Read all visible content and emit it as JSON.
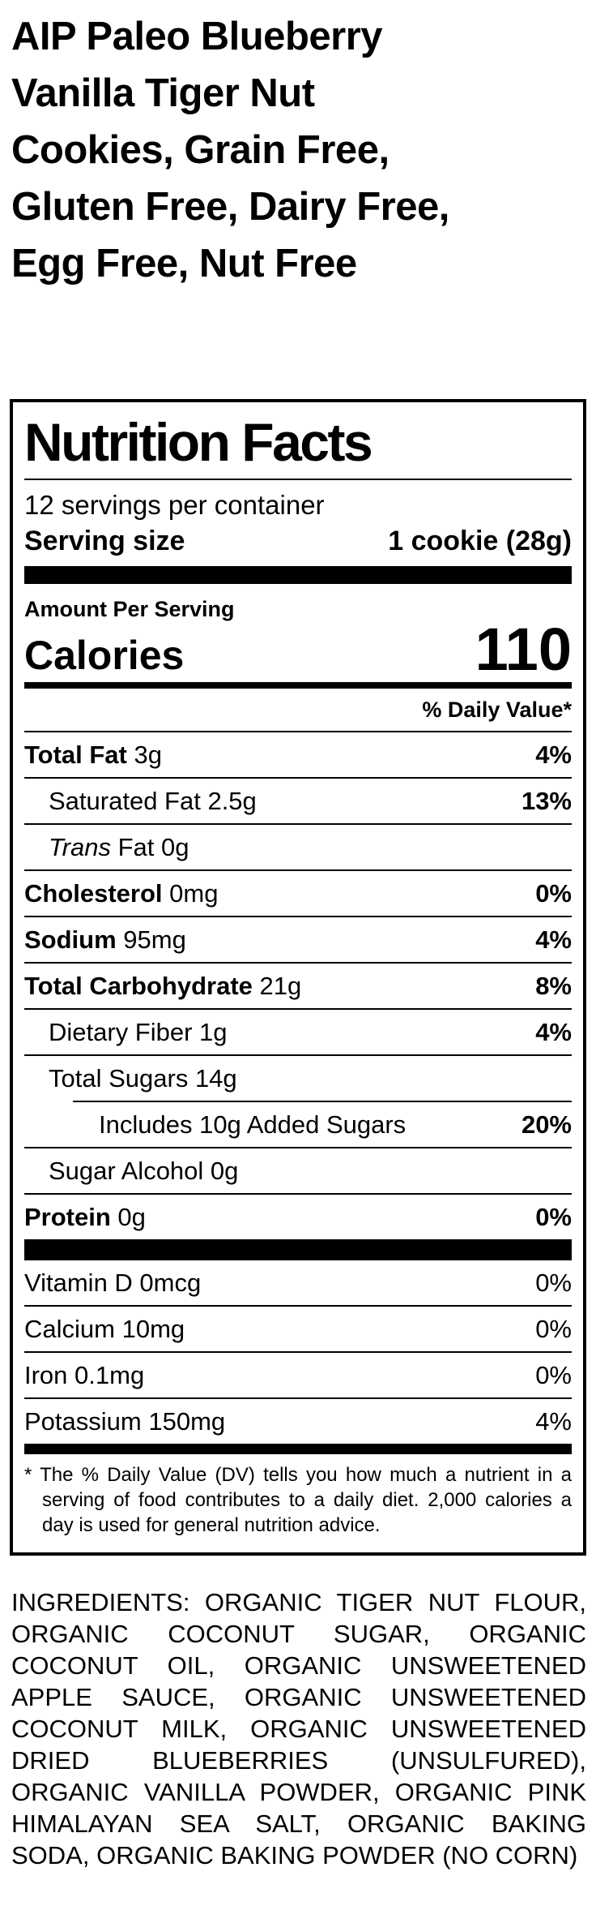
{
  "product": {
    "title_lines": [
      "AIP Paleo Blueberry",
      "Vanilla Tiger Nut",
      "Cookies, Grain Free,",
      "Gluten Free, Dairy Free,",
      "Egg Free, Nut Free"
    ]
  },
  "label": {
    "title": "Nutrition Facts",
    "servings_per_container": "12 servings per container",
    "serving_size": {
      "label": "Serving size",
      "value": "1 cookie (28g)"
    },
    "amount_per_serving": "Amount Per Serving",
    "calories": {
      "label": "Calories",
      "value": "110"
    },
    "daily_value_header": "% Daily Value*",
    "nutrients": [
      {
        "name": "Total Fat",
        "amount": "3g",
        "dv": "4%",
        "bold": true,
        "indent": 0
      },
      {
        "name": "Saturated Fat",
        "amount": "2.5g",
        "dv": "13%",
        "bold": false,
        "indent": 1
      },
      {
        "name": "Trans Fat",
        "italic_prefix": "Trans",
        "amount": "0g",
        "dv": "",
        "bold": false,
        "indent": 1
      },
      {
        "name": "Cholesterol",
        "amount": "0mg",
        "dv": "0%",
        "bold": true,
        "indent": 0
      },
      {
        "name": "Sodium",
        "amount": "95mg",
        "dv": "4%",
        "bold": true,
        "indent": 0
      },
      {
        "name": "Total Carbohydrate",
        "amount": "21g",
        "dv": "8%",
        "bold": true,
        "indent": 0
      },
      {
        "name": "Dietary Fiber",
        "amount": "1g",
        "dv": "4%",
        "bold": false,
        "indent": 1
      },
      {
        "name": "Total Sugars",
        "amount": "14g",
        "dv": "",
        "bold": false,
        "indent": 1
      },
      {
        "name": "Includes 10g Added Sugars",
        "amount": "",
        "dv": "20%",
        "bold": false,
        "indent": 2
      },
      {
        "name": "Sugar Alcohol",
        "amount": "0g",
        "dv": "",
        "bold": false,
        "indent": 1
      },
      {
        "name": "Protein",
        "amount": "0g",
        "dv": "0%",
        "bold": true,
        "indent": 0
      }
    ],
    "micronutrients": [
      {
        "name": "Vitamin D",
        "amount": "0mcg",
        "dv": "0%"
      },
      {
        "name": "Calcium",
        "amount": "10mg",
        "dv": "0%"
      },
      {
        "name": "Iron",
        "amount": "0.1mg",
        "dv": "0%"
      },
      {
        "name": "Potassium",
        "amount": "150mg",
        "dv": "4%"
      }
    ],
    "footnote": "* The % Daily Value (DV) tells you how much a nutrient in a serving of food contributes to a daily diet. 2,000 calories a day is used for general nutrition advice."
  },
  "ingredients": "INGREDIENTS: ORGANIC TIGER NUT FLOUR, ORGANIC COCONUT SUGAR, ORGANIC COCONUT OIL, ORGANIC UNSWEETENED APPLE SAUCE, ORGANIC UNSWEETENED COCONUT MILK, ORGANIC UNSWEETENED DRIED BLUEBERRIES (UNSULFURED), ORGANIC VANILLA POWDER, ORGANIC PINK HIMALAYAN SEA SALT, ORGANIC BAKING SODA, ORGANIC BAKING POWDER (NO CORN)",
  "colors": {
    "text": "#000000",
    "background": "#ffffff"
  }
}
